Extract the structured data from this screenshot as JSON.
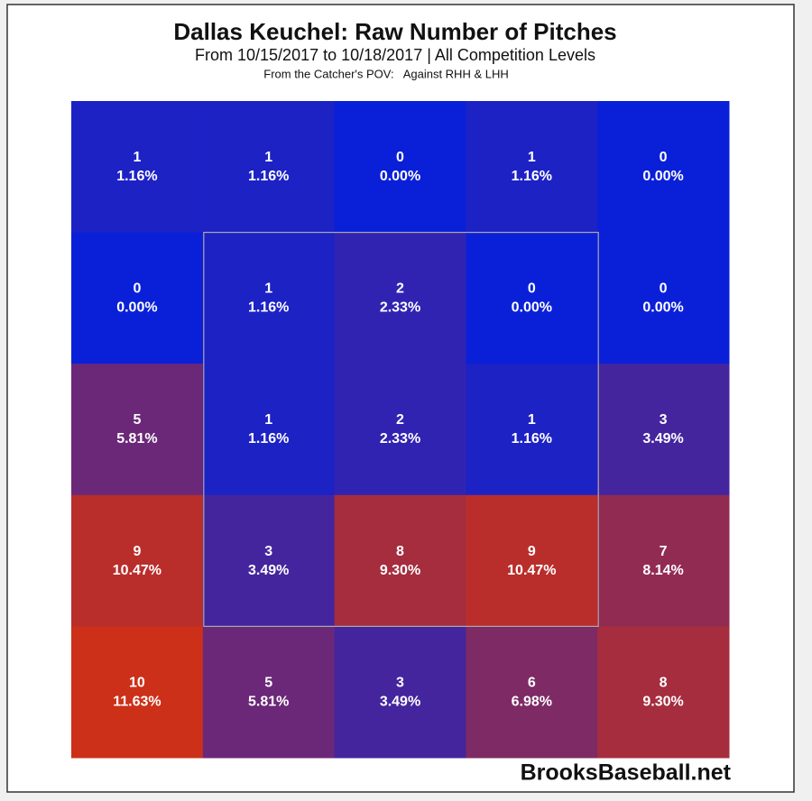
{
  "chart_data": {
    "type": "heatmap",
    "title": "Dallas Keuchel: Raw Number of Pitches",
    "subtitle": "From 10/15/2017 to 10/18/2017 | All Competition Levels",
    "note": "From the Catcher's POV:   Against RHH & LHH",
    "source": "BrooksBaseball.net",
    "values": [
      [
        1,
        1,
        0,
        1,
        0
      ],
      [
        0,
        1,
        2,
        0,
        0
      ],
      [
        5,
        1,
        2,
        1,
        3
      ],
      [
        9,
        3,
        8,
        9,
        7
      ],
      [
        10,
        5,
        3,
        6,
        8
      ]
    ],
    "percents": [
      [
        1.16,
        1.16,
        0.0,
        1.16,
        0.0
      ],
      [
        0.0,
        1.16,
        2.33,
        0.0,
        0.0
      ],
      [
        5.81,
        1.16,
        2.33,
        1.16,
        3.49
      ],
      [
        10.47,
        3.49,
        9.3,
        10.47,
        8.14
      ],
      [
        11.63,
        5.81,
        3.49,
        6.98,
        9.3
      ]
    ],
    "percent_labels": [
      [
        "1.16%",
        "1.16%",
        "0.00%",
        "1.16%",
        "0.00%"
      ],
      [
        "0.00%",
        "1.16%",
        "2.33%",
        "0.00%",
        "0.00%"
      ],
      [
        "5.81%",
        "1.16%",
        "2.33%",
        "1.16%",
        "3.49%"
      ],
      [
        "10.47%",
        "3.49%",
        "9.30%",
        "10.47%",
        "8.14%"
      ],
      [
        "11.63%",
        "5.81%",
        "3.49%",
        "6.98%",
        "9.30%"
      ]
    ],
    "color_low": "#0a20d8",
    "color_high": "#cc3018"
  }
}
